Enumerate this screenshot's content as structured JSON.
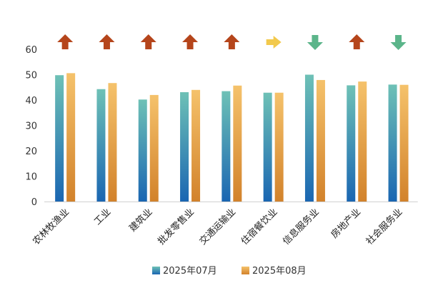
{
  "chart_data": {
    "type": "bar",
    "title": "",
    "xlabel": "",
    "ylabel": "",
    "ylim": [
      0,
      60
    ],
    "yticks": [
      0,
      10,
      20,
      30,
      40,
      50,
      60
    ],
    "grid": false,
    "legend_position": "bottom",
    "categories": [
      "农林牧渔业",
      "工业",
      "建筑业",
      "批发零售业",
      "交通运输业",
      "住宿餐饮业",
      "信息服务业",
      "房地产业",
      "社会服务业"
    ],
    "series": [
      {
        "name": "2025年07月",
        "values": [
          49.8,
          44.3,
          40.2,
          43.1,
          43.5,
          42.9,
          50.0,
          45.8,
          46.1
        ],
        "color_top": "#6ec1b6",
        "color_bottom": "#1a66b2"
      },
      {
        "name": "2025年08月",
        "values": [
          50.6,
          46.7,
          42.0,
          44.0,
          45.7,
          42.9,
          47.9,
          47.3,
          46.0
        ],
        "color_top": "#f5c26b",
        "color_bottom": "#d2822b"
      }
    ],
    "trend_indicators": [
      "up",
      "up",
      "up",
      "up",
      "up",
      "flat",
      "down",
      "up",
      "down"
    ],
    "trend_colors": {
      "up": "#b5451b",
      "flat": "#f2c94c",
      "down": "#5bb58a"
    }
  }
}
